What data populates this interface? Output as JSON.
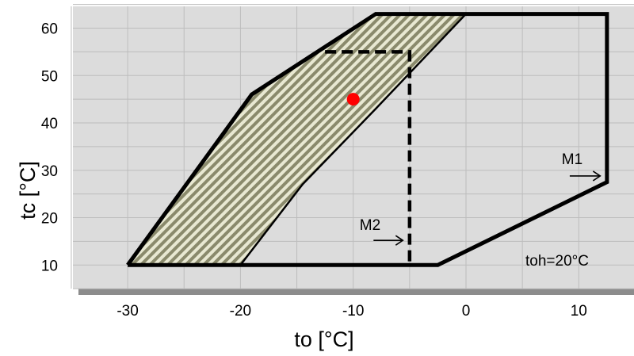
{
  "chart_data": {
    "type": "line",
    "xlabel": "to [°C]",
    "ylabel": "tc [°C]",
    "xlim": [
      -35,
      15
    ],
    "ylim": [
      5,
      65
    ],
    "xticks": [
      -30,
      -20,
      -10,
      0,
      10
    ],
    "yticks": [
      10,
      20,
      30,
      40,
      50,
      60
    ],
    "grid": true,
    "colors": {
      "plot_bg": "#dcdcdc",
      "shadow": "#8c8c8c",
      "grid": "#bdbdbd",
      "envelope": "#000000",
      "hatch_light": "#e8e8d2",
      "hatch_dark": "#8a8a6c",
      "point": "#ff0000"
    },
    "series": [
      {
        "style": "solid-thick",
        "points": [
          [
            -30,
            10
          ],
          [
            -19,
            46
          ],
          [
            -8,
            63
          ],
          [
            12.5,
            63
          ],
          [
            12.5,
            27.5
          ],
          [
            -2.5,
            10
          ],
          [
            -30,
            10
          ]
        ]
      },
      {
        "style": "dashed-thick",
        "points": [
          [
            -12.5,
            55
          ],
          [
            -5,
            55
          ],
          [
            -5,
            10
          ]
        ]
      },
      {
        "style": "solid-thin",
        "points": [
          [
            -20,
            10
          ],
          [
            -14.5,
            27
          ],
          [
            -8,
            43
          ],
          [
            0,
            63
          ]
        ]
      }
    ],
    "hatched_region": [
      [
        -30,
        10
      ],
      [
        -19,
        46
      ],
      [
        -8,
        63
      ],
      [
        0,
        63
      ],
      [
        -8,
        43
      ],
      [
        -14.5,
        27
      ],
      [
        -20,
        10
      ]
    ],
    "point": {
      "x": -10,
      "y": 45
    },
    "annotations": [
      {
        "text": "M1",
        "arrow_from": [
          9.2,
          28.8
        ],
        "arrow_to": [
          11.9,
          28.8
        ]
      },
      {
        "text": "M2",
        "arrow_from": [
          -8.2,
          15.2
        ],
        "arrow_to": [
          -5.6,
          15.2
        ]
      },
      {
        "text": "toh=20°C"
      }
    ]
  }
}
